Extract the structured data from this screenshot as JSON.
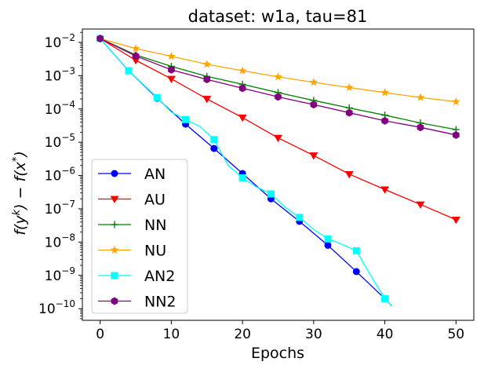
{
  "chart_data": {
    "type": "line",
    "title": "dataset: w1a, tau=81",
    "xlabel": "Epochs",
    "ylabel_main": "f(y",
    "ylabel_sup1": "k",
    "ylabel_mid": ") − f(x",
    "ylabel_sup2": "*",
    "ylabel_end": ")",
    "yscale": "log",
    "xlim": [
      -2.5,
      52.5
    ],
    "ylim_exp": [
      -10.35,
      -1.6
    ],
    "xticks": [
      0,
      10,
      20,
      30,
      40,
      50
    ],
    "yticks_exp": [
      -10,
      -9,
      -8,
      -7,
      -6,
      -5,
      -4,
      -3,
      -2
    ],
    "legend_loc": "lower-left",
    "series": [
      {
        "name": "AN",
        "color": "#0000ff",
        "marker": "circle",
        "x": [
          0,
          4,
          8,
          12,
          16,
          20,
          24,
          28,
          32,
          36,
          40,
          41
        ],
        "y": [
          0.013,
          0.0014,
          0.00021,
          3.5e-05,
          6.5e-06,
          1.15e-06,
          2e-07,
          4.2e-08,
          8e-09,
          1.3e-09,
          2e-10,
          1.2e-10
        ],
        "marker_idx": [
          0,
          1,
          2,
          3,
          4,
          5,
          6,
          7,
          8,
          9,
          10
        ]
      },
      {
        "name": "AU",
        "color": "#ff0000",
        "marker": "triangle-down",
        "x": [
          0,
          5,
          10,
          15,
          20,
          25,
          30,
          35,
          40,
          45,
          50
        ],
        "y": [
          0.013,
          0.0029,
          0.0008,
          0.0002,
          5.5e-05,
          1.35e-05,
          4e-06,
          1.1e-06,
          3.8e-07,
          1.35e-07,
          4.7e-08
        ],
        "marker_idx": [
          1,
          2,
          3,
          4,
          5,
          6,
          7,
          8,
          9,
          10
        ]
      },
      {
        "name": "NN",
        "color": "#008000",
        "marker": "plus",
        "x": [
          0,
          5,
          10,
          15,
          20,
          25,
          30,
          35,
          40,
          45,
          50
        ],
        "y": [
          0.013,
          0.0042,
          0.0019,
          0.00095,
          0.00055,
          0.00031,
          0.00018,
          0.000107,
          6.5e-05,
          3.8e-05,
          2.4e-05
        ],
        "marker_idx": [
          1,
          2,
          3,
          4,
          5,
          6,
          7,
          8,
          9,
          10
        ]
      },
      {
        "name": "NU",
        "color": "#ffa500",
        "marker": "star",
        "x": [
          0,
          5,
          10,
          15,
          20,
          25,
          30,
          35,
          40,
          45,
          50
        ],
        "y": [
          0.013,
          0.0065,
          0.0038,
          0.0022,
          0.0014,
          0.00092,
          0.00063,
          0.00044,
          0.00031,
          0.00022,
          0.000165
        ],
        "marker_idx": [
          1,
          2,
          3,
          4,
          5,
          6,
          7,
          8,
          9,
          10
        ]
      },
      {
        "name": "AN2",
        "color": "#00ffff",
        "marker": "square",
        "x": [
          0,
          4,
          8,
          10,
          12,
          14,
          16,
          18,
          20,
          22,
          24,
          26,
          28,
          30,
          32,
          34,
          36,
          38,
          40,
          41
        ],
        "y": [
          0.013,
          0.0014,
          0.00022,
          8e-05,
          4.8e-05,
          3e-05,
          1.2e-05,
          2e-06,
          8.5e-07,
          4.5e-07,
          2.8e-07,
          1.1e-07,
          5.5e-08,
          2.4e-08,
          1.25e-08,
          8.5e-09,
          5.5e-09,
          1e-09,
          2e-10,
          1.2e-10
        ],
        "marker_idx": [
          0,
          1,
          2,
          4,
          6,
          8,
          10,
          12,
          14,
          16,
          18
        ]
      },
      {
        "name": "NN2",
        "color": "#800080",
        "marker": "hexagon",
        "x": [
          0,
          5,
          10,
          15,
          20,
          25,
          30,
          35,
          40,
          45,
          50
        ],
        "y": [
          0.013,
          0.0039,
          0.0015,
          0.00077,
          0.00042,
          0.00023,
          0.000135,
          7.7e-05,
          4.4e-05,
          2.8e-05,
          1.65e-05
        ],
        "marker_idx": [
          0,
          1,
          2,
          3,
          4,
          5,
          6,
          7,
          8,
          9,
          10
        ]
      }
    ]
  }
}
